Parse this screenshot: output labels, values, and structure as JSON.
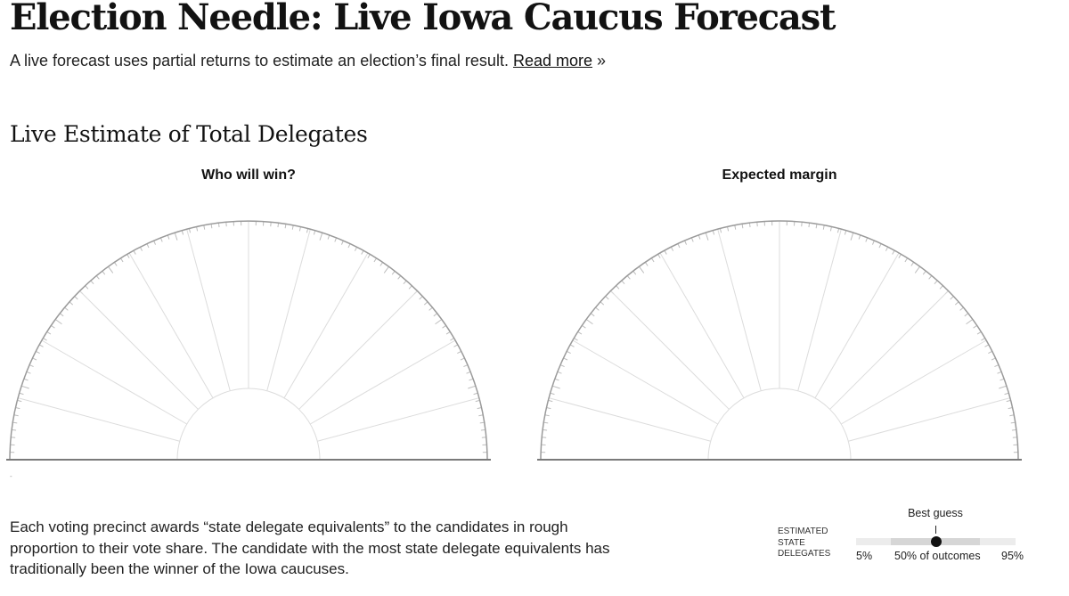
{
  "header": {
    "title": "Election Needle: Live Iowa Caucus Forecast",
    "dek": "A live forecast uses partial returns to estimate an election’s final result.",
    "read_more": "Read more",
    "read_more_suffix": "»"
  },
  "section": {
    "title": "Live Estimate of Total Delegates"
  },
  "panels": [
    {
      "title": "Who will win?"
    },
    {
      "title": "Expected margin"
    }
  ],
  "gauge": {
    "spoke_count": 11,
    "minor_ticks": 100,
    "colors": {
      "arc": "#9a9a9a",
      "spoke": "#dcdcdc",
      "tick": "#bdbdbd",
      "base": "#7a7a7a"
    }
  },
  "footnote_mark": "-",
  "explainer": "Each voting precinct awards “state delegate equivalents” to the candidates in rough proportion to their vote share. The candidate with the most state delegate equivalents has traditionally been the winner of the Iowa caucuses.",
  "legend": {
    "label": "Estimated state delegates",
    "best_guess": "Best guess",
    "low": "5%",
    "mid": "50% of outcomes",
    "high": "95%"
  }
}
